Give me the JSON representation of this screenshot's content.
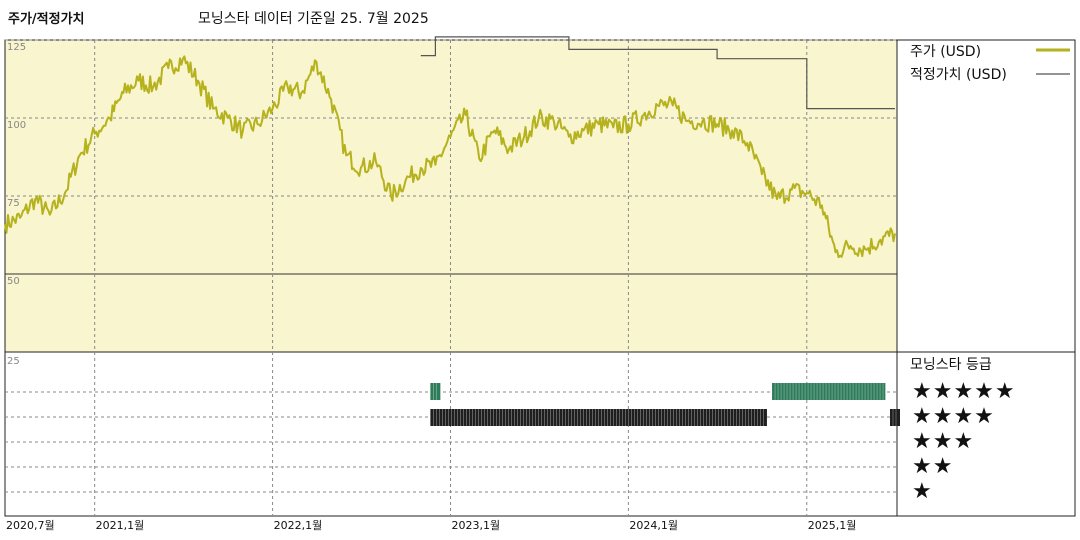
{
  "header": {
    "left_title": "주가/적정가치",
    "subtitle": "모닝스타 데이터 기준일 25. 7월 2025"
  },
  "legend": {
    "price_label": "주가 (USD)",
    "fair_label": "적정가치 (USD)",
    "rating_title": "모닝스타 등급"
  },
  "colors": {
    "price_line": "#b5b21e",
    "fair_line": "#555555",
    "plot_bg": "#f8f5cf",
    "five_star_bar": "#2e7b5a",
    "four_star_bar": "#1f1f1f"
  },
  "chart_data": {
    "type": "line",
    "title": "주가/적정가치",
    "x_tick_labels": [
      "2020,7월",
      "2021,1월",
      "2022,1월",
      "2023,1월",
      "2024,1월",
      "2025,1월"
    ],
    "x_ticks": [
      "2020-07",
      "2021-01",
      "2022-01",
      "2023-01",
      "2024-01",
      "2025-01"
    ],
    "x_range": [
      "2020-07",
      "2025-07"
    ],
    "y_tick_labels": [
      "125",
      "100",
      "75",
      "50",
      "25"
    ],
    "ylim": [
      25,
      130
    ],
    "grid": "dashed",
    "legend_position": "top-right",
    "series": [
      {
        "name": "주가 (USD)",
        "points": [
          [
            "2020-07",
            66
          ],
          [
            "2020-08",
            68
          ],
          [
            "2020-09",
            74
          ],
          [
            "2020-10",
            69
          ],
          [
            "2020-11",
            76
          ],
          [
            "2020-12",
            88
          ],
          [
            "2021-01",
            95
          ],
          [
            "2021-02",
            100
          ],
          [
            "2021-03",
            108
          ],
          [
            "2021-04",
            112
          ],
          [
            "2021-05",
            110
          ],
          [
            "2021-06",
            116
          ],
          [
            "2021-07",
            119
          ],
          [
            "2021-08",
            112
          ],
          [
            "2021-09",
            103
          ],
          [
            "2021-10",
            100
          ],
          [
            "2021-11",
            96
          ],
          [
            "2021-12",
            98
          ],
          [
            "2022-01",
            103
          ],
          [
            "2022-02",
            110
          ],
          [
            "2022-03",
            108
          ],
          [
            "2022-04",
            118
          ],
          [
            "2022-05",
            106
          ],
          [
            "2022-06",
            88
          ],
          [
            "2022-07",
            84
          ],
          [
            "2022-08",
            86
          ],
          [
            "2022-09",
            75
          ],
          [
            "2022-10",
            80
          ],
          [
            "2022-11",
            84
          ],
          [
            "2022-12",
            85
          ],
          [
            "2023-01",
            94
          ],
          [
            "2023-02",
            101
          ],
          [
            "2023-03",
            87
          ],
          [
            "2023-04",
            96
          ],
          [
            "2023-05",
            90
          ],
          [
            "2023-06",
            94
          ],
          [
            "2023-07",
            100
          ],
          [
            "2023-08",
            99
          ],
          [
            "2023-09",
            94
          ],
          [
            "2023-10",
            96
          ],
          [
            "2023-11",
            98
          ],
          [
            "2023-12",
            97
          ],
          [
            "2024-01",
            98
          ],
          [
            "2024-02",
            101
          ],
          [
            "2024-03",
            104
          ],
          [
            "2024-04",
            104
          ],
          [
            "2024-05",
            99
          ],
          [
            "2024-06",
            99
          ],
          [
            "2024-07",
            98
          ],
          [
            "2024-08",
            96
          ],
          [
            "2024-09",
            92
          ],
          [
            "2024-10",
            82
          ],
          [
            "2024-11",
            74
          ],
          [
            "2024-12",
            77
          ],
          [
            "2025-01",
            76
          ],
          [
            "2025-02",
            72
          ],
          [
            "2025-03",
            57
          ],
          [
            "2025-04",
            59
          ],
          [
            "2025-05",
            58
          ],
          [
            "2025-06",
            61
          ],
          [
            "2025-07",
            63
          ]
        ]
      },
      {
        "name": "적정가치 (USD)",
        "points": [
          [
            "2022-11",
            120
          ],
          [
            "2022-12",
            120
          ],
          [
            "2022-12",
            126
          ],
          [
            "2023-09",
            126
          ],
          [
            "2023-09",
            122
          ],
          [
            "2024-07",
            122
          ],
          [
            "2024-07",
            119
          ],
          [
            "2025-01",
            119
          ],
          [
            "2025-01",
            103
          ],
          [
            "2025-07",
            103
          ]
        ]
      }
    ],
    "star_ratings": {
      "title": "모닝스타 등급",
      "levels": [
        "★★★★★",
        "★★★★",
        "★★★",
        "★★",
        "★"
      ],
      "periods": [
        {
          "stars": 5,
          "start": "2022-12",
          "end": "2022-12"
        },
        {
          "stars": 4,
          "start": "2022-12",
          "end": "2024-10"
        },
        {
          "stars": 5,
          "start": "2024-11",
          "end": "2025-06"
        },
        {
          "stars": 4,
          "start": "2025-07",
          "end": "2025-07"
        }
      ]
    }
  }
}
